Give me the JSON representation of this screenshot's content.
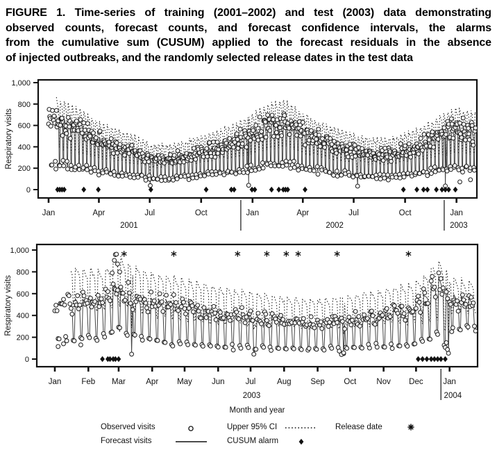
{
  "figure_caption": {
    "lines": [
      "FIGURE 1. Time-series of training (2001–2002) and test (2003) data demonstrating",
      "observed counts, forecast counts, and forecast confidence intervals, the alarms",
      "from the cumulative sum (CUSUM) applied to the forecast residuals in the absence",
      "of injected outbreaks, and the randomly selected release dates in the test data"
    ]
  },
  "legend": {
    "items": [
      {
        "label": "Observed visits",
        "symbol": "open-circle"
      },
      {
        "label": "Forecast visits",
        "symbol": "solid-line"
      },
      {
        "label": "Upper 95% CI",
        "symbol": "dotted-line"
      },
      {
        "label": "CUSUM alarm",
        "symbol": "filled-diamond"
      },
      {
        "label": "Release date",
        "symbol": "asterisk"
      }
    ]
  },
  "colors": {
    "ink": "#111111",
    "line": "#444444",
    "background": "#ffffff"
  },
  "chart_data": [
    {
      "id": "training-2001-2002",
      "type": "line",
      "title": "",
      "ylabel": "Respiratory visits",
      "xlabel": "",
      "ylim": [
        0,
        1000
      ],
      "grid": false,
      "yticks": [
        {
          "v": 0,
          "label": "0"
        },
        {
          "v": 200,
          "label": "200"
        },
        {
          "v": 400,
          "label": "400"
        },
        {
          "v": 600,
          "label": "600"
        },
        {
          "v": 800,
          "label": "800"
        },
        {
          "v": 1000,
          "label": "1,000"
        }
      ],
      "x_axis": {
        "unit": "days since 2001-01-01",
        "ticks": [
          {
            "day": 0,
            "label": "Jan"
          },
          {
            "day": 90,
            "label": "Apr"
          },
          {
            "day": 181,
            "label": "Jul"
          },
          {
            "day": 273,
            "label": "Oct"
          },
          {
            "day": 365,
            "label": "Jan"
          },
          {
            "day": 455,
            "label": "Apr"
          },
          {
            "day": 546,
            "label": "Jul"
          },
          {
            "day": 638,
            "label": "Oct"
          },
          {
            "day": 730,
            "label": "Jan"
          }
        ],
        "year_labels": [
          {
            "label": "2001",
            "day": 144
          },
          {
            "label": "2002",
            "day": 512
          },
          {
            "label": "2003",
            "day": 734
          }
        ],
        "year_divider_days": [
          344,
          708
        ],
        "day_max": 764
      },
      "series": {
        "forecast_envelope_points": [
          [
            0,
            700,
            250,
            170
          ],
          [
            31,
            645,
            225,
            160
          ],
          [
            59,
            575,
            205,
            150
          ],
          [
            90,
            485,
            175,
            140
          ],
          [
            120,
            425,
            150,
            132
          ],
          [
            151,
            378,
            135,
            126
          ],
          [
            181,
            305,
            108,
            122
          ],
          [
            212,
            292,
            100,
            120
          ],
          [
            243,
            322,
            120,
            124
          ],
          [
            273,
            362,
            140,
            130
          ],
          [
            304,
            412,
            155,
            138
          ],
          [
            334,
            462,
            175,
            146
          ],
          [
            365,
            545,
            200,
            158
          ],
          [
            396,
            640,
            235,
            168
          ],
          [
            424,
            658,
            245,
            170
          ],
          [
            455,
            560,
            210,
            152
          ],
          [
            485,
            482,
            180,
            142
          ],
          [
            516,
            422,
            155,
            132
          ],
          [
            546,
            382,
            140,
            126
          ],
          [
            577,
            352,
            125,
            122
          ],
          [
            608,
            342,
            120,
            122
          ],
          [
            638,
            382,
            140,
            130
          ],
          [
            669,
            442,
            160,
            140
          ],
          [
            699,
            522,
            185,
            148
          ],
          [
            730,
            600,
            215,
            154
          ],
          [
            762,
            552,
            195,
            150
          ]
        ],
        "envelope_fields": [
          "day",
          "weekday_high",
          "weekend_low",
          "upper_ci_offset"
        ],
        "forecast_start_day": 14,
        "weekday_factors": [
          1.02,
          0.99,
          0.96,
          0.92,
          0.87
        ],
        "weekend_factors": [
          1.04,
          0.92
        ],
        "first_day_weekday_offset": 0,
        "holiday_dip_days": [
          [
            182,
            38
          ],
          [
            358,
            48
          ],
          [
            553,
            32
          ],
          [
            710,
            22
          ]
        ],
        "observed_noise_fraction": 0.13,
        "extra_observed_points": [
          [
            736,
            72
          ],
          [
            755,
            92
          ]
        ],
        "cusum_alarm_days": [
          16,
          20,
          24,
          28,
          63,
          89,
          183,
          282,
          327,
          332,
          364,
          369,
          399,
          412,
          420,
          424,
          428,
          459,
          635,
          659,
          671,
          678,
          694,
          704,
          710,
          716,
          728
        ],
        "cusum_alarm_value": 0
      }
    },
    {
      "id": "test-2003",
      "type": "line",
      "title": "",
      "ylabel": "Respiratory visits",
      "xlabel": "Month and year",
      "ylim": [
        0,
        1000
      ],
      "grid": false,
      "yticks": [
        {
          "v": 0,
          "label": "0"
        },
        {
          "v": 200,
          "label": "200"
        },
        {
          "v": 400,
          "label": "400"
        },
        {
          "v": 600,
          "label": "600"
        },
        {
          "v": 800,
          "label": "800"
        },
        {
          "v": 1000,
          "label": "1,000"
        }
      ],
      "x_axis": {
        "unit": "days since 2003-01-01",
        "ticks": [
          {
            "day": 0,
            "label": "Jan"
          },
          {
            "day": 31,
            "label": "Feb"
          },
          {
            "day": 59,
            "label": "Mar"
          },
          {
            "day": 90,
            "label": "Apr"
          },
          {
            "day": 120,
            "label": "May"
          },
          {
            "day": 151,
            "label": "Jun"
          },
          {
            "day": 181,
            "label": "Jul"
          },
          {
            "day": 212,
            "label": "Aug"
          },
          {
            "day": 243,
            "label": "Sep"
          },
          {
            "day": 273,
            "label": "Oct"
          },
          {
            "day": 304,
            "label": "Nov"
          },
          {
            "day": 334,
            "label": "Dec"
          },
          {
            "day": 365,
            "label": "Jan"
          }
        ],
        "year_labels": [
          {
            "label": "2003",
            "day": 182
          },
          {
            "label": "2004",
            "day": 368
          }
        ],
        "year_divider_days": [
          357
        ],
        "day_max": 389
      },
      "series": {
        "forecast_envelope_points": [
          [
            0,
            525,
            170,
            300
          ],
          [
            15,
            545,
            185,
            295
          ],
          [
            31,
            530,
            195,
            280
          ],
          [
            45,
            545,
            205,
            255
          ],
          [
            52,
            625,
            245,
            230
          ],
          [
            56,
            700,
            285,
            225
          ],
          [
            58,
            712,
            292,
            232
          ],
          [
            62,
            652,
            252,
            250
          ],
          [
            70,
            600,
            222,
            250
          ],
          [
            90,
            548,
            168,
            232
          ],
          [
            120,
            502,
            142,
            222
          ],
          [
            151,
            442,
            122,
            216
          ],
          [
            181,
            396,
            106,
            210
          ],
          [
            212,
            352,
            96,
            206
          ],
          [
            243,
            342,
            96,
            200
          ],
          [
            273,
            372,
            106,
            200
          ],
          [
            304,
            422,
            122,
            204
          ],
          [
            330,
            482,
            142,
            200
          ],
          [
            342,
            582,
            182,
            172
          ],
          [
            350,
            702,
            232,
            152
          ],
          [
            355,
            742,
            252,
            142
          ],
          [
            360,
            682,
            122,
            152
          ],
          [
            364,
            602,
            102,
            162
          ],
          [
            368,
            582,
            295,
            162
          ],
          [
            381,
            545,
            288,
            162
          ]
        ],
        "envelope_fields": [
          "day",
          "weekday_high",
          "weekend_low",
          "upper_ci_offset"
        ],
        "forecast_start_day": 15,
        "weekday_factors": [
          1.02,
          0.99,
          0.96,
          0.92,
          0.87
        ],
        "weekend_factors": [
          1.04,
          0.92
        ],
        "first_day_weekday_offset": 2,
        "holiday_dip_days": [
          [
            71,
            52
          ],
          [
            184,
            46
          ],
          [
            267,
            40
          ],
          [
            364,
            45
          ]
        ],
        "observed_noise_fraction": 0.13,
        "extra_observed_points": [
          [
            3,
            115
          ],
          [
            8,
            140
          ],
          [
            24,
            130
          ],
          [
            53,
            790
          ],
          [
            55,
            905
          ],
          [
            56,
            958
          ],
          [
            57,
            962
          ],
          [
            58,
            872
          ],
          [
            60,
            800
          ],
          [
            265,
            42
          ],
          [
            267,
            58
          ],
          [
            362,
            150
          ],
          [
            363,
            88
          ]
        ],
        "cusum_alarm_days": [
          44,
          49,
          51,
          54,
          56,
          59,
          336,
          340,
          344,
          348,
          351,
          354,
          357,
          361
        ],
        "cusum_alarm_value": 0,
        "release_date_days": [
          64,
          110,
          169,
          196,
          214,
          225,
          261,
          327
        ],
        "release_marker_value": 965
      }
    }
  ]
}
